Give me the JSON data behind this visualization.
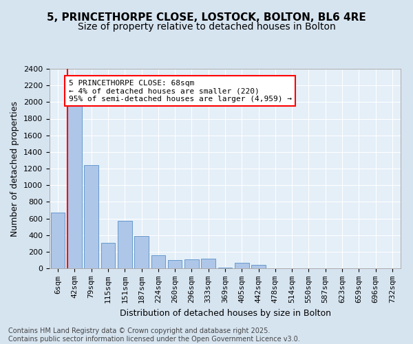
{
  "title1": "5, PRINCETHORPE CLOSE, LOSTOCK, BOLTON, BL6 4RE",
  "title2": "Size of property relative to detached houses in Bolton",
  "xlabel": "Distribution of detached houses by size in Bolton",
  "ylabel": "Number of detached properties",
  "bar_color": "#aec6e8",
  "bar_edge_color": "#6699cc",
  "background_color": "#d6e4f0",
  "plot_bg_color": "#e4eff8",
  "grid_color": "#ffffff",
  "bins": [
    "6sqm",
    "42sqm",
    "79sqm",
    "115sqm",
    "151sqm",
    "187sqm",
    "224sqm",
    "260sqm",
    "296sqm",
    "333sqm",
    "369sqm",
    "405sqm",
    "442sqm",
    "478sqm",
    "514sqm",
    "550sqm",
    "587sqm",
    "623sqm",
    "659sqm",
    "696sqm",
    "732sqm"
  ],
  "values": [
    670,
    1960,
    1240,
    310,
    570,
    390,
    160,
    100,
    110,
    120,
    10,
    70,
    40,
    0,
    0,
    0,
    0,
    0,
    0,
    0,
    0
  ],
  "ylim": [
    0,
    2400
  ],
  "yticks": [
    0,
    200,
    400,
    600,
    800,
    1000,
    1200,
    1400,
    1600,
    1800,
    2000,
    2200,
    2400
  ],
  "vline_x": 0.58,
  "annotation_text": "5 PRINCETHORPE CLOSE: 68sqm\n← 4% of detached houses are smaller (220)\n95% of semi-detached houses are larger (4,959) →",
  "footer": "Contains HM Land Registry data © Crown copyright and database right 2025.\nContains public sector information licensed under the Open Government Licence v3.0.",
  "title_fontsize": 11,
  "subtitle_fontsize": 10,
  "axis_label_fontsize": 9,
  "tick_fontsize": 8,
  "annotation_fontsize": 8,
  "footer_fontsize": 7
}
